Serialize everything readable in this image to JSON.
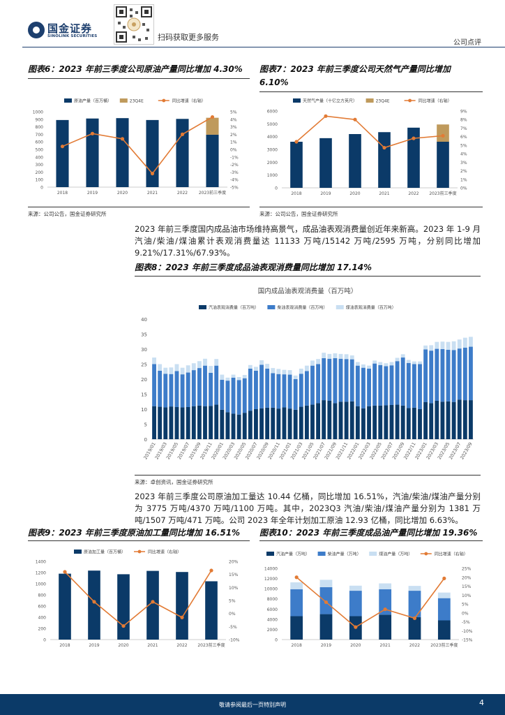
{
  "header": {
    "logo_cn": "国金证券",
    "logo_en": "SINOLINK SECURITIES",
    "qr_caption": "扫码获取更多服务",
    "report_type": "公司点评"
  },
  "colors": {
    "navy": "#0b3a68",
    "mid_blue": "#3d7cc9",
    "light_blue": "#c9dff2",
    "gold": "#bf9a5c",
    "orange": "#e27b35"
  },
  "fig6": {
    "title": "图表6：2023 年前三季度公司原油产量同比增加 4.30%",
    "source": "来源：公司公告，国金证券研究所",
    "chart_data": {
      "type": "bar",
      "categories": [
        "2018",
        "2019",
        "2020",
        "2021",
        "2022",
        "2023前三季度"
      ],
      "series": [
        {
          "name": "原油产量（百万桶）",
          "kind": "bar",
          "values": [
            890,
            910,
            915,
            890,
            905,
            695
          ]
        },
        {
          "name": "23Q4E",
          "kind": "bar-stack",
          "values": [
            0,
            0,
            0,
            0,
            0,
            225
          ]
        },
        {
          "name": "同比增速（右轴）",
          "kind": "line",
          "axis": "right",
          "values": [
            0.4,
            2.1,
            1.4,
            -3.2,
            2.0,
            4.3
          ]
        }
      ],
      "ylim": [
        0,
        1000
      ],
      "yticks": [
        "1000",
        "900",
        "800",
        "700",
        "600",
        "500",
        "400",
        "300",
        "200",
        "100",
        "0"
      ],
      "y2lim": [
        -5,
        5
      ],
      "y2ticks": [
        "5%",
        "4%",
        "3%",
        "2%",
        "1%",
        "0%",
        "-1%",
        "-2%",
        "-3%",
        "-4%",
        "-5%"
      ]
    }
  },
  "fig7": {
    "title_line1": "图表7：2023 年前三季度公司天然气产量同比增加",
    "title_line2": "6.10%",
    "source": "来源：公司公告，国金证券研究所",
    "chart_data": {
      "type": "bar",
      "categories": [
        "2018",
        "2019",
        "2020",
        "2021",
        "2022",
        "2023前三季度"
      ],
      "series": [
        {
          "name": "天然气产量（十亿立方英尺）",
          "kind": "bar",
          "values": [
            3600,
            3880,
            4200,
            4350,
            4700,
            3600
          ]
        },
        {
          "name": "23Q4E",
          "kind": "bar-stack",
          "values": [
            0,
            0,
            0,
            0,
            0,
            1350
          ]
        },
        {
          "name": "同比增速（右轴）",
          "kind": "line",
          "axis": "right",
          "values": [
            5.4,
            8.4,
            8.0,
            4.7,
            5.8,
            6.1
          ]
        }
      ],
      "ylim": [
        0,
        6000
      ],
      "yticks": [
        "6000",
        "5000",
        "4000",
        "3000",
        "2000",
        "1000",
        "0"
      ],
      "y2lim": [
        0,
        9
      ],
      "y2ticks": [
        "9%",
        "8%",
        "7%",
        "6%",
        "5%",
        "4%",
        "3%",
        "2%",
        "1%",
        "0%"
      ]
    }
  },
  "para1": "2023 年前三季度国内成品油市场维持高景气，成品油表观消费量创近年来新高。2023 年 1-9 月汽油/柴油/煤油累计表观消费量达 11133 万吨/15142 万吨/2595 万吨，分别同比增加 9.21%/17.31%/67.93%。",
  "fig8": {
    "title": "图表8：2023 年前三季度成品油表观消费量同比增加 17.14%",
    "source": "来源：卓创资讯，国金证券研究所",
    "chart_data": {
      "type": "bar",
      "stacked": true,
      "title": "国内成品油表观消费量（百万吨）",
      "categories": [
        "2019/01",
        "2019/02",
        "2019/03",
        "2019/04",
        "2019/05",
        "2019/06",
        "2019/07",
        "2019/08",
        "2019/09",
        "2019/10",
        "2019/11",
        "2019/12",
        "2020/01",
        "2020/02",
        "2020/03",
        "2020/04",
        "2020/05",
        "2020/06",
        "2020/07",
        "2020/08",
        "2020/09",
        "2020/10",
        "2020/11",
        "2020/12",
        "2021/01",
        "2021/02",
        "2021/03",
        "2021/04",
        "2021/05",
        "2021/06",
        "2021/07",
        "2021/08",
        "2021/09",
        "2021/10",
        "2021/11",
        "2021/12",
        "2022/01",
        "2022/02",
        "2022/03",
        "2022/04",
        "2022/05",
        "2022/06",
        "2022/07",
        "2022/08",
        "2022/09",
        "2022/10",
        "2022/11",
        "2022/12",
        "2023/01",
        "2023/02",
        "2023/03",
        "2023/04",
        "2023/05",
        "2023/06",
        "2023/07",
        "2023/08",
        "2023/09"
      ],
      "xticks": [
        "2019/01",
        "2019/03",
        "2019/05",
        "2019/07",
        "2019/09",
        "2019/11",
        "2020/01",
        "2020/03",
        "2020/05",
        "2020/07",
        "2020/09",
        "2020/11",
        "2021/01",
        "2021/03",
        "2021/05",
        "2021/07",
        "2021/09",
        "2021/11",
        "2022/01",
        "2022/03",
        "2022/05",
        "2022/07",
        "2022/09",
        "2022/11",
        "2023/01",
        "2023/03",
        "2023/05",
        "2023/07",
        "2023/09"
      ],
      "series": [
        {
          "name": "汽油表观消费量（百万吨）",
          "values": [
            11.0,
            10.8,
            10.6,
            10.9,
            10.7,
            10.6,
            10.7,
            11.0,
            11.2,
            11.0,
            11.1,
            11.5,
            9.8,
            9.0,
            8.5,
            8.2,
            8.8,
            9.5,
            10.0,
            10.3,
            10.5,
            10.5,
            10.2,
            10.6,
            10.2,
            9.8,
            10.8,
            11.2,
            11.5,
            12.0,
            13.0,
            12.8,
            12.0,
            12.5,
            12.5,
            12.6,
            11.0,
            10.3,
            11.0,
            11.2,
            11.2,
            11.3,
            11.4,
            11.5,
            11.2,
            10.4,
            10.5,
            10.0,
            12.4,
            12.0,
            12.8,
            12.5,
            12.6,
            12.4,
            13.2,
            13.0,
            13.0
          ]
        },
        {
          "name": "柴油表观消费量（百万吨）",
          "values": [
            14.0,
            12.0,
            11.2,
            10.8,
            12.0,
            11.0,
            11.5,
            12.0,
            12.5,
            13.5,
            11.0,
            13.0,
            10.0,
            10.5,
            12.0,
            11.5,
            11.5,
            14.0,
            12.8,
            14.5,
            13.0,
            11.5,
            11.5,
            11.0,
            11.3,
            10.2,
            11.0,
            11.5,
            13.0,
            13.0,
            14.0,
            14.0,
            15.0,
            14.3,
            14.2,
            14.0,
            13.5,
            13.5,
            12.5,
            14.0,
            13.5,
            13.0,
            13.2,
            14.5,
            16.0,
            15.0,
            14.5,
            15.0,
            17.5,
            17.5,
            17.3,
            17.5,
            17.2,
            17.3,
            17.0,
            17.5,
            17.8
          ]
        },
        {
          "name": "煤油表观消费量（百万吨）",
          "values": [
            2.2,
            2.2,
            2.0,
            2.2,
            2.3,
            2.2,
            2.4,
            2.3,
            2.3,
            2.3,
            2.3,
            2.2,
            1.7,
            1.0,
            1.0,
            1.0,
            1.1,
            1.2,
            1.3,
            1.5,
            1.6,
            1.7,
            1.7,
            1.5,
            1.5,
            1.2,
            1.7,
            1.8,
            1.7,
            1.7,
            1.8,
            1.6,
            1.6,
            1.6,
            1.6,
            1.3,
            1.2,
            1.1,
            1.0,
            1.0,
            1.0,
            1.0,
            1.1,
            1.1,
            1.1,
            1.0,
            0.9,
            0.9,
            1.3,
            1.8,
            2.3,
            2.5,
            2.6,
            2.9,
            3.0,
            3.3,
            3.3
          ]
        }
      ],
      "ylim": [
        0,
        40
      ],
      "yticks": [
        "40",
        "35",
        "30",
        "25",
        "20",
        "15",
        "10",
        "5",
        "0"
      ]
    }
  },
  "para2": "2023 年前三季度公司原油加工量达 10.44 亿桶，同比增加 16.51%，汽油/柴油/煤油产量分别为 3775 万吨/4370 万吨/1100 万吨。其中，2023Q3 汽油/柴油/煤油产量分别为 1381 万吨/1507 万吨/471 万吨。公司 2023 年全年计划加工原油 12.93 亿桶，同比增加 6.63%。",
  "fig9": {
    "title": "图表9：2023 年前三季度原油加工量同比增加 16.51%",
    "chart_data": {
      "type": "bar",
      "categories": [
        "2018",
        "2019",
        "2020",
        "2021",
        "2022",
        "2023前三季度"
      ],
      "series": [
        {
          "name": "原油加工量（百万桶）",
          "kind": "bar",
          "values": [
            1180,
            1235,
            1170,
            1230,
            1210,
            1044
          ]
        },
        {
          "name": "同比增速（右轴）",
          "kind": "line",
          "axis": "right",
          "values": [
            16.0,
            4.5,
            -4.8,
            4.5,
            -1.5,
            16.51
          ]
        }
      ],
      "ylim": [
        0,
        1400
      ],
      "yticks": [
        "1400",
        "1200",
        "1000",
        "800",
        "600",
        "400",
        "200",
        "0"
      ],
      "y2lim": [
        -10,
        20
      ],
      "y2ticks": [
        "20%",
        "15%",
        "10%",
        "5%",
        "0%",
        "-5%",
        "-10%"
      ]
    }
  },
  "fig10": {
    "title": "图表10：2023 年前三季度成品油产量同比增加 19.36%",
    "chart_data": {
      "type": "bar",
      "stacked": true,
      "categories": [
        "2018",
        "2019",
        "2020",
        "2021",
        "2022",
        "2023前三季度"
      ],
      "series": [
        {
          "name": "汽油产量（万吨）",
          "kind": "bar",
          "values": [
            4600,
            5000,
            4600,
            4900,
            4400,
            3775
          ]
        },
        {
          "name": "柴油产量（万吨）",
          "kind": "bar",
          "values": [
            5300,
            5300,
            5000,
            5000,
            5200,
            4370
          ]
        },
        {
          "name": "煤油产量（万吨）",
          "kind": "bar",
          "values": [
            1350,
            1450,
            1000,
            1150,
            950,
            1100
          ]
        },
        {
          "name": "同比增速（右轴）",
          "kind": "line",
          "axis": "right",
          "values": [
            20.0,
            6.0,
            -8.0,
            2.0,
            -3.0,
            19.36
          ]
        }
      ],
      "ylim": [
        0,
        14000
      ],
      "yticks": [
        "14000",
        "12000",
        "10000",
        "8000",
        "6000",
        "4000",
        "2000",
        "0"
      ],
      "y2lim": [
        -15,
        25
      ],
      "y2ticks": [
        "25%",
        "20%",
        "15%",
        "10%",
        "5%",
        "0%",
        "-5%",
        "-10%",
        "-15%"
      ]
    }
  },
  "footer": {
    "disclaimer": "敬请参阅最后一页特别声明",
    "page": "4"
  }
}
